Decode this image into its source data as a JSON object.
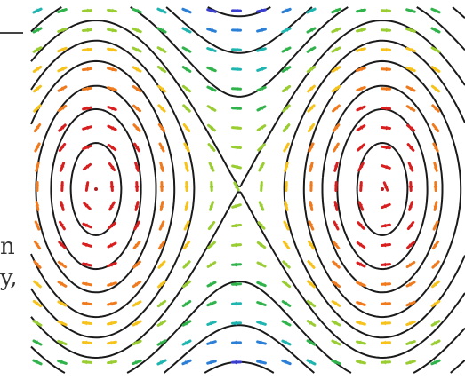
{
  "figure": {
    "kind": "phase-portrait",
    "description": "",
    "edge_fragments": [
      "n",
      "y,"
    ]
  },
  "colors": {
    "background": "#ffffff",
    "contour": "#1a1a1a",
    "arrow_scale": [
      "#d81f1f",
      "#f07a1e",
      "#f6c21c",
      "#9acd32",
      "#2fb34a",
      "#1fb5b0",
      "#2b7fd6",
      "#3a3fd0",
      "#9a3bd2"
    ]
  }
}
